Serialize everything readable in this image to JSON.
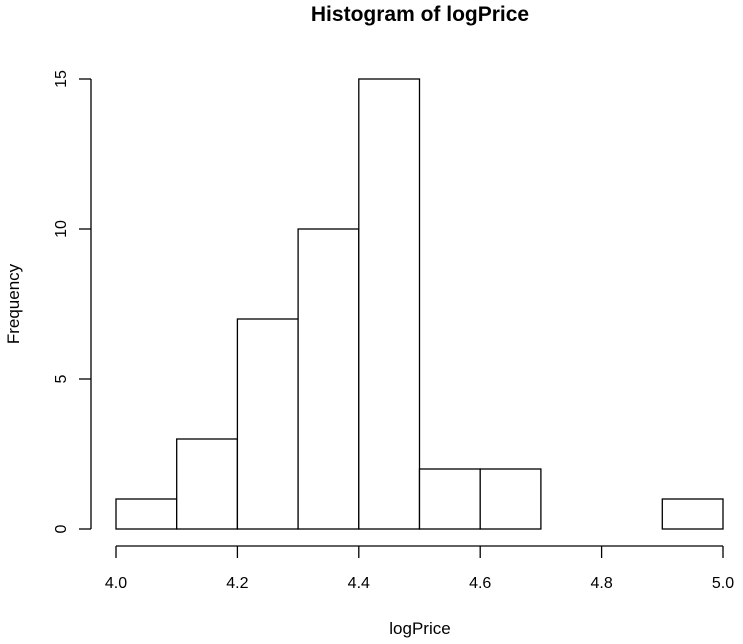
{
  "chart_data": {
    "type": "bar",
    "title": "Histogram of logPrice",
    "xlabel": "logPrice",
    "ylabel": "Frequency",
    "bins": [
      {
        "start": 4.0,
        "end": 4.1,
        "count": 1
      },
      {
        "start": 4.1,
        "end": 4.2,
        "count": 3
      },
      {
        "start": 4.2,
        "end": 4.3,
        "count": 7
      },
      {
        "start": 4.3,
        "end": 4.4,
        "count": 10
      },
      {
        "start": 4.4,
        "end": 4.5,
        "count": 15
      },
      {
        "start": 4.5,
        "end": 4.6,
        "count": 2
      },
      {
        "start": 4.6,
        "end": 4.7,
        "count": 2
      },
      {
        "start": 4.7,
        "end": 4.8,
        "count": 0
      },
      {
        "start": 4.8,
        "end": 4.9,
        "count": 0
      },
      {
        "start": 4.9,
        "end": 5.0,
        "count": 1
      }
    ],
    "x_ticks": [
      "4.0",
      "4.2",
      "4.4",
      "4.6",
      "4.8",
      "5.0"
    ],
    "y_ticks": [
      "0",
      "5",
      "10",
      "15"
    ],
    "xlim": [
      4.0,
      5.0
    ],
    "ylim": [
      0,
      15
    ],
    "grid": false,
    "legend": "none"
  }
}
